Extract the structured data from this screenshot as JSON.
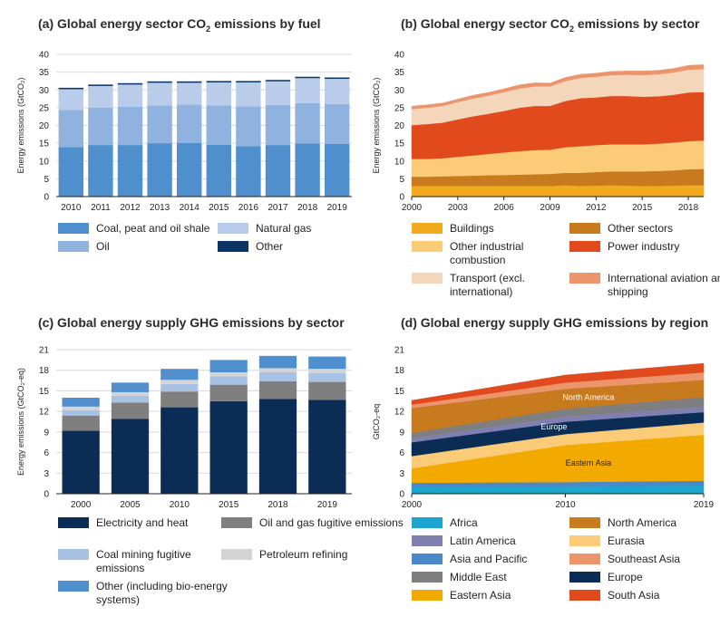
{
  "chart_data": [
    {
      "id": "a",
      "type": "bar",
      "title": "(a) Global energy sector CO₂ emissions by fuel",
      "ylabel": "Energy emissions (GtCO₂)",
      "xlabel": "",
      "ylim": [
        0,
        40
      ],
      "yticks": [
        0,
        5,
        10,
        15,
        20,
        25,
        30,
        35,
        40
      ],
      "grid": true,
      "stacked": true,
      "categories": [
        "2010",
        "2011",
        "2012",
        "2013",
        "2014",
        "2015",
        "2016",
        "2017",
        "2018",
        "2019"
      ],
      "series": [
        {
          "name": "Coal, peat and oil shale",
          "color": "#4f8fcd",
          "values": [
            13.9,
            14.5,
            14.5,
            15.0,
            15.1,
            14.6,
            14.2,
            14.5,
            14.9,
            14.8
          ]
        },
        {
          "name": "Oil",
          "color": "#8fb2df",
          "values": [
            10.5,
            10.5,
            10.8,
            10.6,
            10.8,
            11.0,
            11.2,
            11.3,
            11.4,
            11.2
          ]
        },
        {
          "name": "Natural gas",
          "color": "#b9cdea",
          "values": [
            5.8,
            6.1,
            6.2,
            6.4,
            6.1,
            6.5,
            6.7,
            6.6,
            7.0,
            7.1
          ]
        },
        {
          "name": "Other",
          "color": "#0b3564",
          "values": [
            0.4,
            0.4,
            0.4,
            0.4,
            0.4,
            0.4,
            0.4,
            0.4,
            0.4,
            0.4
          ]
        }
      ],
      "legend": [
        "Coal, peat and oil shale",
        "Natural gas",
        "Oil",
        "Other"
      ]
    },
    {
      "id": "b",
      "type": "area",
      "title": "(b) Global energy sector CO₂ emissions by sector",
      "ylabel": "Energy emissions (GtCO₂)",
      "xlabel": "",
      "ylim": [
        0,
        40
      ],
      "yticks": [
        0,
        5,
        10,
        15,
        20,
        25,
        30,
        35,
        40
      ],
      "xlim": [
        2000,
        2019
      ],
      "xticks": [
        "2000",
        "2003",
        "2006",
        "2009",
        "2012",
        "2015",
        "2018"
      ],
      "grid": false,
      "stacked": true,
      "x": [
        2000,
        2001,
        2002,
        2003,
        2004,
        2005,
        2006,
        2007,
        2008,
        2009,
        2010,
        2011,
        2012,
        2013,
        2014,
        2015,
        2016,
        2017,
        2018,
        2019
      ],
      "series": [
        {
          "name": "Buildings",
          "color": "#f2ab1e",
          "values": [
            3.0,
            3.0,
            3.0,
            3.0,
            3.0,
            3.0,
            3.0,
            3.0,
            3.0,
            3.0,
            3.2,
            3.0,
            3.1,
            3.2,
            3.1,
            3.0,
            3.0,
            3.1,
            3.2,
            3.2
          ]
        },
        {
          "name": "Other sectors",
          "color": "#c87a1e",
          "values": [
            2.6,
            2.6,
            2.7,
            2.8,
            2.9,
            3.0,
            3.1,
            3.2,
            3.3,
            3.4,
            3.5,
            3.7,
            3.8,
            3.9,
            4.0,
            4.1,
            4.2,
            4.3,
            4.5,
            4.6
          ]
        },
        {
          "name": "Other industrial combustion",
          "color": "#fbcb77",
          "values": [
            5.0,
            5.0,
            5.1,
            5.4,
            5.7,
            6.0,
            6.3,
            6.6,
            6.8,
            6.8,
            7.2,
            7.5,
            7.6,
            7.6,
            7.6,
            7.6,
            7.7,
            7.8,
            7.9,
            8.0
          ]
        },
        {
          "name": "Power industry",
          "color": "#e04a1c",
          "values": [
            9.5,
            9.8,
            10.0,
            10.5,
            11.0,
            11.3,
            11.7,
            12.2,
            12.4,
            12.3,
            13.0,
            13.5,
            13.4,
            13.6,
            13.6,
            13.4,
            13.3,
            13.4,
            13.7,
            13.6
          ]
        },
        {
          "name": "Transport (excl. international)",
          "color": "#f4d6bb",
          "values": [
            4.5,
            4.6,
            4.7,
            4.9,
            5.0,
            5.1,
            5.3,
            5.4,
            5.5,
            5.5,
            5.6,
            5.7,
            5.8,
            5.9,
            6.0,
            6.1,
            6.2,
            6.3,
            6.4,
            6.5
          ]
        },
        {
          "name": "International aviation and shipping",
          "color": "#ec946c",
          "values": [
            0.8,
            0.8,
            0.8,
            0.8,
            0.9,
            0.9,
            0.9,
            1.0,
            1.0,
            0.9,
            1.0,
            1.0,
            1.0,
            1.0,
            1.0,
            1.1,
            1.1,
            1.1,
            1.2,
            1.2
          ]
        }
      ],
      "legend": [
        "Buildings",
        "Other sectors",
        "Other industrial combustion",
        "Power industry",
        "Transport (excl. international)",
        "International aviation and shipping"
      ]
    },
    {
      "id": "c",
      "type": "bar",
      "title": "(c) Global energy supply GHG emissions by sector",
      "ylabel": "Energy emissions (GtCO₂-eq)",
      "xlabel": "",
      "ylim": [
        0,
        21
      ],
      "yticks": [
        0,
        3,
        6,
        9,
        12,
        15,
        18,
        21
      ],
      "grid": true,
      "stacked": true,
      "categories": [
        "2000",
        "2005",
        "2010",
        "2015",
        "2018",
        "2019"
      ],
      "series": [
        {
          "name": "Electricity and heat",
          "color": "#0b2d55",
          "values": [
            9.2,
            10.9,
            12.6,
            13.5,
            13.8,
            13.7
          ]
        },
        {
          "name": "Oil and gas fugitive emissions",
          "color": "#7f7f7f",
          "values": [
            2.2,
            2.4,
            2.3,
            2.4,
            2.6,
            2.6
          ]
        },
        {
          "name": "Coal mining fugitive emissions",
          "color": "#a8c2e6",
          "values": [
            0.8,
            1.0,
            1.1,
            1.2,
            1.3,
            1.3
          ]
        },
        {
          "name": "Petroleum refining",
          "color": "#d4d4d4",
          "values": [
            0.5,
            0.5,
            0.6,
            0.6,
            0.6,
            0.6
          ]
        },
        {
          "name": "Other (including bio-energy systems)",
          "color": "#4f8fcd",
          "values": [
            1.3,
            1.4,
            1.6,
            1.8,
            1.8,
            1.8
          ]
        }
      ],
      "legend": [
        "Electricity and heat",
        "Oil and gas fugitive emissions",
        "Coal mining fugitive emissions",
        "Petroleum refining",
        "Other (including bio-energy systems)"
      ]
    },
    {
      "id": "d",
      "type": "area",
      "title": "(d) Global energy supply GHG emissions by region",
      "ylabel": "GtCO₂-eq",
      "xlabel": "",
      "ylim": [
        0,
        21
      ],
      "yticks": [
        0,
        3,
        6,
        9,
        12,
        15,
        18,
        21
      ],
      "xlim": [
        2000,
        2019
      ],
      "xticks": [
        "2000",
        "2010",
        "2019"
      ],
      "grid": false,
      "stacked": true,
      "annotations": [
        "North America",
        "Europe",
        "Eastern Asia"
      ],
      "x": [
        2000,
        2010,
        2019
      ],
      "series": [
        {
          "name": "Africa",
          "color": "#1aa6d0",
          "values": [
            1.0,
            1.1,
            1.2
          ]
        },
        {
          "name": "Asia and Pacific",
          "color": "#4a88c8",
          "values": [
            0.6,
            0.6,
            0.7
          ]
        },
        {
          "name": "Eastern Asia",
          "color": "#f2a900",
          "values": [
            2.1,
            5.4,
            6.7
          ]
        },
        {
          "name": "Eurasia",
          "color": "#fbcb77",
          "values": [
            1.8,
            1.6,
            1.8
          ]
        },
        {
          "name": "Europe",
          "color": "#0b2d55",
          "values": [
            2.0,
            1.8,
            1.5
          ]
        },
        {
          "name": "Latin America",
          "color": "#8080b0",
          "values": [
            0.6,
            0.8,
            0.8
          ]
        },
        {
          "name": "Middle East",
          "color": "#7f7f7f",
          "values": [
            0.8,
            1.1,
            1.4
          ]
        },
        {
          "name": "North America",
          "color": "#c87a1e",
          "values": [
            3.6,
            2.9,
            2.5
          ]
        },
        {
          "name": "Southeast Asia",
          "color": "#ec946c",
          "values": [
            0.5,
            0.9,
            1.1
          ]
        },
        {
          "name": "South Asia",
          "color": "#e04a1c",
          "values": [
            0.6,
            1.1,
            1.3
          ]
        }
      ],
      "legend": [
        "Africa",
        "North America",
        "Latin America",
        "Eurasia",
        "Asia and Pacific",
        "Southeast Asia",
        "Middle East",
        "Europe",
        "Eastern Asia",
        "South Asia"
      ]
    }
  ]
}
